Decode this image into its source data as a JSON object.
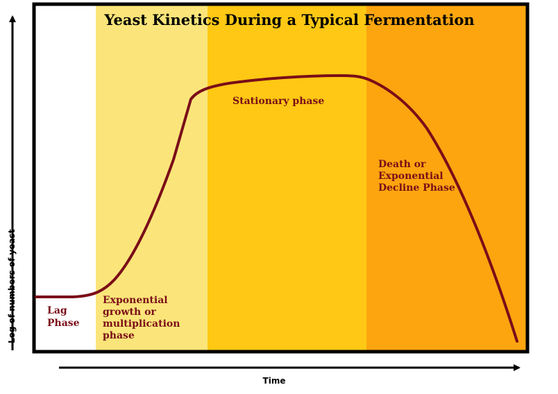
{
  "chart_data": {
    "type": "line",
    "title": "Yeast Kinetics During a Typical Fermentation",
    "xlabel": "Time",
    "ylabel": "Log of numbers of yeast",
    "phases": [
      {
        "name": "lag",
        "lines": [
          "Lag",
          "Phase"
        ],
        "color": "#ffffff"
      },
      {
        "name": "exponential",
        "lines": [
          "Exponential",
          "growth or",
          "multiplication",
          "phase"
        ],
        "color": "#fbe57a"
      },
      {
        "name": "stationary",
        "lines": [
          "Stationary phase"
        ],
        "color": "#fec814"
      },
      {
        "name": "death",
        "lines": [
          "Death or",
          "Exponential",
          "Decline Phase"
        ],
        "color": "#fca50f"
      }
    ],
    "curve_color": "#7a0d18",
    "frame_color": "#000000"
  }
}
